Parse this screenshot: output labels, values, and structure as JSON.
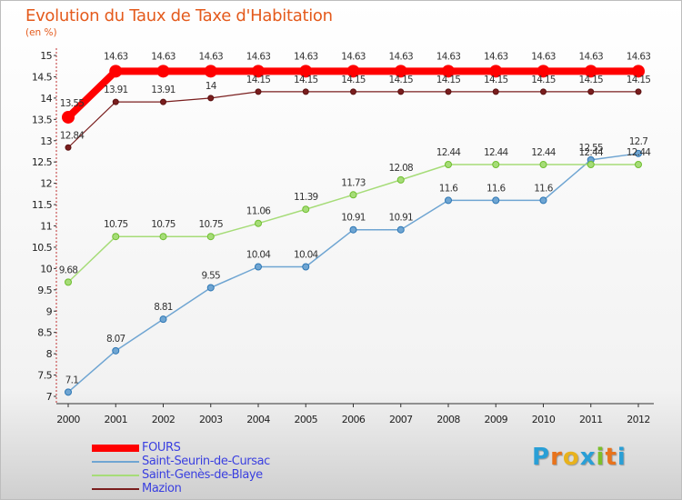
{
  "title": "Evolution du Taux de Taxe d'Habitation",
  "subtitle": "(en %)",
  "logo_text": "Proxiti",
  "logo_colors": [
    "#2a9fd6",
    "#e8731c",
    "#e8b21c",
    "#2a9fd6",
    "#7cbf2a",
    "#e8731c",
    "#2a9fd6"
  ],
  "chart_data": {
    "type": "line",
    "title": "Evolution du Taux de Taxe d'Habitation",
    "subtitle": "(en %)",
    "xlabel": "",
    "ylabel": "",
    "x": [
      "2000",
      "2001",
      "2002",
      "2003",
      "2004",
      "2005",
      "2006",
      "2007",
      "2008",
      "2009",
      "2010",
      "2011",
      "2012"
    ],
    "yticks": [
      "7",
      "7.5",
      "8",
      "8.5",
      "9",
      "9.5",
      "10",
      "10.5",
      "11",
      "11.5",
      "12",
      "12.5",
      "13",
      "13.5",
      "14",
      "14.5",
      "15"
    ],
    "ylim": [
      7,
      15
    ],
    "grid": false,
    "legend_position": "bottom-left",
    "series": [
      {
        "name": "FOURS",
        "color": "#ff0000",
        "values": [
          13.55,
          14.63,
          14.63,
          14.63,
          14.63,
          14.63,
          14.63,
          14.63,
          14.63,
          14.63,
          14.63,
          14.63,
          14.63
        ],
        "labels": [
          "13.55",
          "14.63",
          "14.63",
          "14.63",
          "14.63",
          "14.63",
          "14.63",
          "14.63",
          "14.63",
          "14.63",
          "14.63",
          "14.63",
          "14.63"
        ]
      },
      {
        "name": "Saint-Seurin-de-Cursac",
        "color": "#6fa5d2",
        "values": [
          7.1,
          8.07,
          8.81,
          9.55,
          10.04,
          10.04,
          10.91,
          10.91,
          11.6,
          11.6,
          11.6,
          12.55,
          12.7
        ],
        "labels": [
          "7.1",
          "8.07",
          "8.81",
          "9.55",
          "10.04",
          "10.04",
          "10.91",
          "10.91",
          "11.6",
          "11.6",
          "11.6",
          "12.55",
          "12.7"
        ]
      },
      {
        "name": "Saint-Genès-de-Blaye",
        "color": "#a6dc78",
        "values": [
          9.68,
          10.75,
          10.75,
          10.75,
          11.06,
          11.39,
          11.73,
          12.08,
          12.44,
          12.44,
          12.44,
          12.44,
          12.44
        ],
        "labels": [
          "9.68",
          "10.75",
          "10.75",
          "10.75",
          "11.06",
          "11.39",
          "11.73",
          "12.08",
          "12.44",
          "12.44",
          "12.44",
          "12.44",
          "12.44"
        ]
      },
      {
        "name": "Mazion",
        "color": "#7a1e1e",
        "values": [
          12.84,
          13.91,
          13.91,
          14,
          14.15,
          14.15,
          14.15,
          14.15,
          14.15,
          14.15,
          14.15,
          14.15,
          14.15
        ],
        "labels": [
          "12.84",
          "13.91",
          "13.91",
          "14",
          "14.15",
          "14.15",
          "14.15",
          "14.15",
          "14.15",
          "14.15",
          "14.15",
          "14.15",
          "14.15"
        ]
      }
    ]
  }
}
